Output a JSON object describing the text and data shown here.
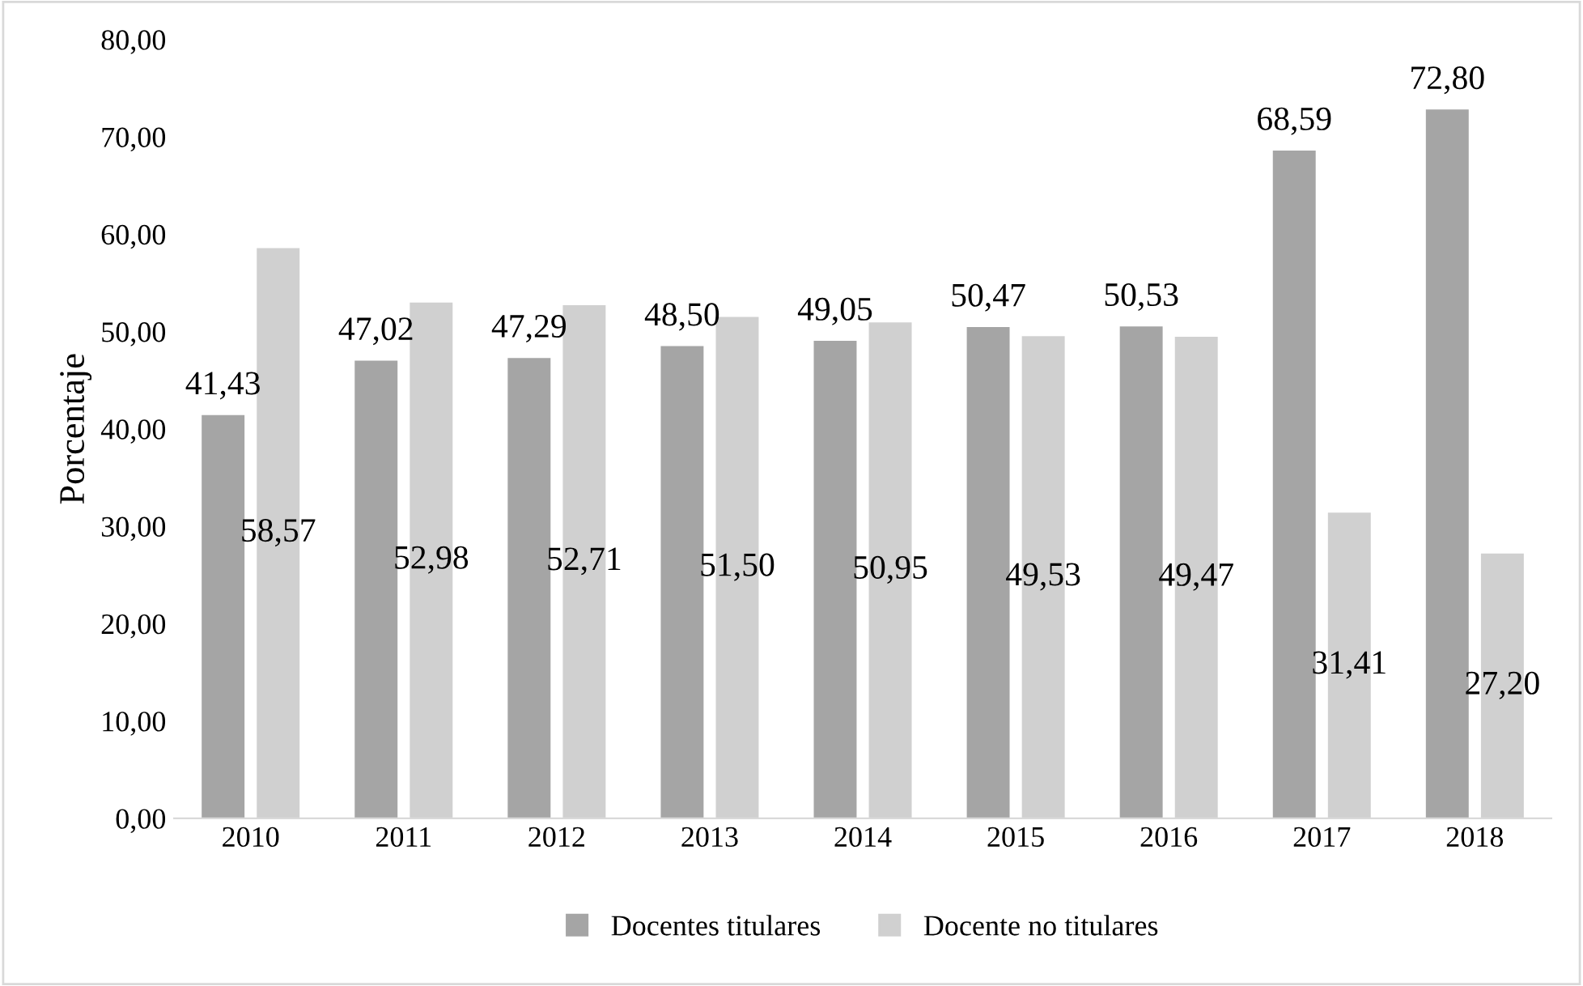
{
  "chart_data": {
    "type": "bar",
    "ylabel": "Porcentaje",
    "categories": [
      "2010",
      "2011",
      "2012",
      "2013",
      "2014",
      "2015",
      "2016",
      "2017",
      "2018"
    ],
    "series": [
      {
        "name": "Docentes titulares",
        "color": "#a5a5a5",
        "values": [
          41.43,
          47.02,
          47.29,
          48.5,
          49.05,
          50.47,
          50.53,
          68.59,
          72.8
        ],
        "value_labels": [
          "41,43",
          "47,02",
          "47,29",
          "48,50",
          "49,05",
          "50,47",
          "50,53",
          "68,59",
          "72,80"
        ]
      },
      {
        "name": "Docente no titulares",
        "color": "#d0d0d0",
        "values": [
          58.57,
          52.98,
          52.71,
          51.5,
          50.95,
          49.53,
          49.47,
          31.41,
          27.2
        ],
        "value_labels": [
          "58,57",
          "52,98",
          "52,71",
          "51,50",
          "50,95",
          "49,53",
          "49,47",
          "31,41",
          "27,20"
        ]
      }
    ],
    "ylim": [
      0,
      80
    ],
    "yticks": [
      {
        "value": 0,
        "label": "0,00"
      },
      {
        "value": 10,
        "label": "10,00"
      },
      {
        "value": 20,
        "label": "20,00"
      },
      {
        "value": 30,
        "label": "30,00"
      },
      {
        "value": 40,
        "label": "40,00"
      },
      {
        "value": 50,
        "label": "50,00"
      },
      {
        "value": 60,
        "label": "60,00"
      },
      {
        "value": 70,
        "label": "70,00"
      },
      {
        "value": 80,
        "label": "80,00"
      }
    ],
    "grid": false,
    "legend": "bottom"
  }
}
